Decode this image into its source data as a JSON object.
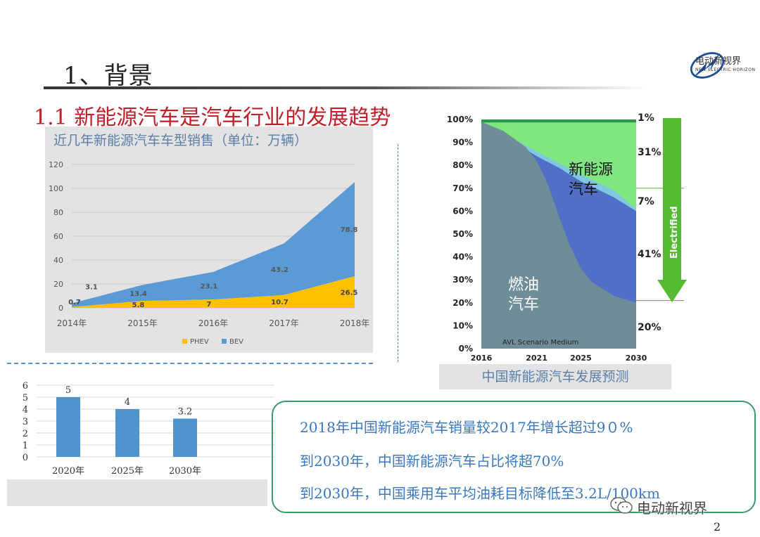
{
  "header": {
    "title": "1、背景",
    "subtitle": "1.1 新能源汽车是汽车行业的发展趋势",
    "logo_name": "电动新视界",
    "logo_sub": "NEW ELECTRIC HORIZON"
  },
  "chart_data": [
    {
      "type": "area",
      "title": "近几年新能源汽车车型销售（单位：万辆）",
      "categories": [
        "2014年",
        "2015年",
        "2016年",
        "2017年",
        "2018年"
      ],
      "stacked": true,
      "series": [
        {
          "name": "PHEV",
          "values": [
            0.7,
            5.8,
            7,
            10.7,
            26.5
          ],
          "color": "#ffc000"
        },
        {
          "name": "BEV",
          "values": [
            3.1,
            13.4,
            23.1,
            43.2,
            78.8
          ],
          "color": "#5b9bd5"
        }
      ],
      "yticks": [
        0,
        20,
        40,
        60,
        80,
        100,
        120
      ],
      "ylim": [
        0,
        120
      ],
      "legend": "bottom",
      "grid": true
    },
    {
      "type": "area",
      "title": "",
      "caption": "中国新能源汽车发展预测",
      "x": [
        2016,
        2021,
        2025,
        2030
      ],
      "xticks": [
        "2016",
        "2021",
        "2025",
        "2030"
      ],
      "yticks": [
        "0%",
        "10%",
        "20%",
        "30%",
        "40%",
        "50%",
        "60%",
        "70%",
        "80%",
        "90%",
        "100%"
      ],
      "ylim": [
        0,
        100
      ],
      "stacked": true,
      "region_labels": {
        "ice": "燃油\n汽车",
        "nev": "新能源\n汽车"
      },
      "ice_label_lines": [
        "燃油",
        "汽车"
      ],
      "nev_label_lines": [
        "新能源",
        "汽车"
      ],
      "right_labels": [
        "1%",
        "31%",
        "7%",
        "41%",
        "20%"
      ],
      "arrow_label": "Electrified",
      "scenario_note": "AVL Scenario Medium",
      "shares_2030": {
        "ice": 20,
        "nev": 41,
        "hybrid_light": 7,
        "mild": 31,
        "other": 1
      },
      "colors": {
        "ice": "#6f8d98",
        "nev": "#5070c8",
        "hybrid_light": "#7fc8e0",
        "mild": "#80e680",
        "other": "#2a9a4a",
        "arrow": "#55bb33"
      }
    },
    {
      "type": "bar",
      "title": "",
      "categories": [
        "2020年",
        "2025年",
        "2030年"
      ],
      "values": [
        5,
        4,
        3.2
      ],
      "value_labels": [
        "5",
        "4",
        "3.2"
      ],
      "yticks": [
        0,
        1,
        2,
        3,
        4,
        5,
        6
      ],
      "ylim": [
        0,
        6
      ],
      "color": "#4f94cd"
    }
  ],
  "callout": {
    "lines": [
      "2018年中国新能源汽车销量较2017年增长超过9０%",
      "到2030年，中国新能源汽车占比将超70%",
      "到2030年，中国乘用车平均油耗目标降低至3.2L/100km"
    ]
  },
  "watermark": "电动新视界",
  "page_number": "2"
}
